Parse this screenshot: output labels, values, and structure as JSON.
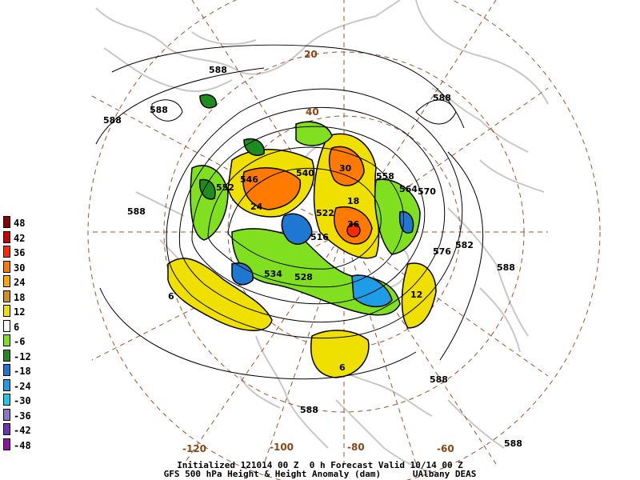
{
  "legend": {
    "entries": [
      {
        "label": "48",
        "color": "#8b0000"
      },
      {
        "label": "42",
        "color": "#c80000"
      },
      {
        "label": "36",
        "color": "#ff2a00"
      },
      {
        "label": "30",
        "color": "#ff7a00"
      },
      {
        "label": "24",
        "color": "#ffa500"
      },
      {
        "label": "18",
        "color": "#d2901e"
      },
      {
        "label": "12",
        "color": "#f0e000"
      },
      {
        "label": "6",
        "color": "#ffffff"
      },
      {
        "label": "-6",
        "color": "#80e020"
      },
      {
        "label": "-12",
        "color": "#1e8c1e"
      },
      {
        "label": "-18",
        "color": "#1e78d2"
      },
      {
        "label": "-24",
        "color": "#1e9ce6"
      },
      {
        "label": "-30",
        "color": "#1ec8e6"
      },
      {
        "label": "-36",
        "color": "#8c78c8"
      },
      {
        "label": "-42",
        "color": "#6e32b4"
      },
      {
        "label": "-48",
        "color": "#8c14a0"
      }
    ]
  },
  "latitude_labels": [
    "20",
    "40"
  ],
  "longitude_labels": [
    "-120",
    "-100",
    "-80",
    "-60"
  ],
  "contour_labels": [
    "588",
    "588",
    "588",
    "588",
    "588",
    "588",
    "588",
    "582",
    "576",
    "570",
    "564",
    "558",
    "552",
    "546",
    "540",
    "534",
    "528",
    "522",
    "516"
  ],
  "anomaly_labels": [
    "6",
    "6",
    "12",
    "30",
    "36",
    "24",
    "18"
  ],
  "footer": {
    "line1": "Initialized 121014 00 Z  0 h Forecast Valid 10/14 00 Z",
    "line2": "GFS 500 hPa Height & Height Anomaly (dam)      UAlbany DEAS"
  },
  "colors": {
    "coast": "#c8c8c8",
    "graticule": "#a0522d",
    "contour": "#000000"
  }
}
